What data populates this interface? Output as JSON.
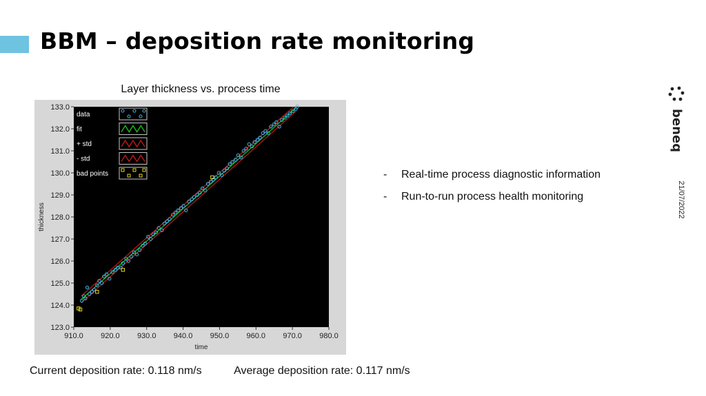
{
  "slide": {
    "title": "BBM – deposition rate monitoring",
    "accent_color": "#6ec3e0",
    "bullets": [
      {
        "marker": "-",
        "text": "Real-time process diagnostic information"
      },
      {
        "marker": "-",
        "text": "Run-to-run process health monitoring"
      }
    ],
    "current_rate": "Current deposition rate: 0.118 nm/s",
    "average_rate": "Average deposition rate: 0.117 nm/s",
    "date": "21/07/2022",
    "logo_text": "beneq"
  },
  "chart_data": {
    "type": "scatter",
    "title": "Layer thickness vs. process time",
    "xlabel": "time",
    "ylabel": "thickness",
    "xlim": [
      910,
      980
    ],
    "ylim": [
      123,
      133
    ],
    "x_ticks": [
      "910.0",
      "920.0",
      "930.0",
      "940.0",
      "950.0",
      "960.0",
      "970.0",
      "980.0"
    ],
    "y_ticks": [
      "123.0",
      "124.0",
      "125.0",
      "126.0",
      "127.0",
      "128.0",
      "129.0",
      "130.0",
      "131.0",
      "132.0",
      "133.0"
    ],
    "legend_position": "top-left",
    "background": "#000000",
    "series": [
      {
        "name": "data",
        "style": "circle",
        "color": "#3fb8e8",
        "values": [
          [
            912.2,
            124.2
          ],
          [
            912.8,
            124.4
          ],
          [
            913.2,
            124.3
          ],
          [
            913.7,
            124.8
          ],
          [
            914.3,
            124.5
          ],
          [
            915.0,
            124.6
          ],
          [
            915.6,
            124.7
          ],
          [
            916.4,
            124.9
          ],
          [
            917.0,
            125.1
          ],
          [
            917.7,
            125.0
          ],
          [
            918.3,
            125.3
          ],
          [
            919.0,
            125.4
          ],
          [
            919.8,
            125.2
          ],
          [
            920.6,
            125.5
          ],
          [
            921.4,
            125.6
          ],
          [
            922.0,
            125.7
          ],
          [
            922.9,
            125.7
          ],
          [
            923.5,
            125.9
          ],
          [
            924.4,
            126.1
          ],
          [
            925.0,
            126.0
          ],
          [
            925.8,
            126.2
          ],
          [
            926.5,
            126.4
          ],
          [
            927.3,
            126.3
          ],
          [
            928.1,
            126.5
          ],
          [
            928.9,
            126.7
          ],
          [
            929.6,
            126.8
          ],
          [
            930.4,
            127.1
          ],
          [
            931.1,
            127.0
          ],
          [
            931.8,
            127.2
          ],
          [
            932.6,
            127.3
          ],
          [
            933.3,
            127.5
          ],
          [
            934.2,
            127.4
          ],
          [
            934.9,
            127.7
          ],
          [
            935.6,
            127.8
          ],
          [
            936.3,
            127.9
          ],
          [
            937.2,
            128.1
          ],
          [
            937.9,
            128.2
          ],
          [
            938.6,
            128.3
          ],
          [
            939.4,
            128.4
          ],
          [
            940.1,
            128.5
          ],
          [
            940.8,
            128.3
          ],
          [
            941.6,
            128.7
          ],
          [
            942.4,
            128.8
          ],
          [
            943.0,
            128.9
          ],
          [
            943.9,
            129.0
          ],
          [
            944.6,
            129.1
          ],
          [
            945.3,
            129.3
          ],
          [
            946.1,
            129.2
          ],
          [
            946.8,
            129.5
          ],
          [
            947.6,
            129.6
          ],
          [
            948.3,
            129.7
          ],
          [
            949.0,
            129.8
          ],
          [
            949.8,
            130.0
          ],
          [
            950.6,
            129.9
          ],
          [
            951.3,
            130.1
          ],
          [
            952.1,
            130.2
          ],
          [
            952.8,
            130.4
          ],
          [
            953.5,
            130.5
          ],
          [
            954.4,
            130.6
          ],
          [
            955.1,
            130.8
          ],
          [
            955.9,
            130.7
          ],
          [
            956.6,
            131.0
          ],
          [
            957.3,
            131.1
          ],
          [
            958.1,
            131.3
          ],
          [
            958.9,
            131.2
          ],
          [
            959.6,
            131.4
          ],
          [
            960.4,
            131.5
          ],
          [
            961.1,
            131.6
          ],
          [
            961.9,
            131.8
          ],
          [
            962.6,
            131.9
          ],
          [
            963.4,
            131.8
          ],
          [
            964.1,
            132.1
          ],
          [
            964.9,
            132.2
          ],
          [
            965.6,
            132.3
          ],
          [
            966.4,
            132.1
          ],
          [
            967.1,
            132.4
          ],
          [
            967.9,
            132.5
          ],
          [
            968.6,
            132.6
          ],
          [
            969.3,
            132.7
          ],
          [
            970.1,
            132.8
          ],
          [
            970.9,
            132.9
          ],
          [
            971.3,
            133.0
          ]
        ]
      },
      {
        "name": "fit",
        "style": "line",
        "color": "#19c819",
        "values": [
          [
            912,
            124.25
          ],
          [
            971,
            132.95
          ]
        ]
      },
      {
        "name": "+ std",
        "style": "line",
        "color": "#c81919",
        "values": [
          [
            912,
            124.4
          ],
          [
            971,
            133.1
          ]
        ]
      },
      {
        "name": "- std",
        "style": "line",
        "color": "#c81919",
        "values": [
          [
            912,
            124.1
          ],
          [
            971,
            132.8
          ]
        ]
      },
      {
        "name": "bad points",
        "style": "square",
        "color": "#e6dc1e",
        "values": [
          [
            911.3,
            123.85
          ],
          [
            911.8,
            123.8
          ],
          [
            916.4,
            124.6
          ],
          [
            923.5,
            125.6
          ],
          [
            948.0,
            129.8
          ]
        ]
      }
    ]
  }
}
